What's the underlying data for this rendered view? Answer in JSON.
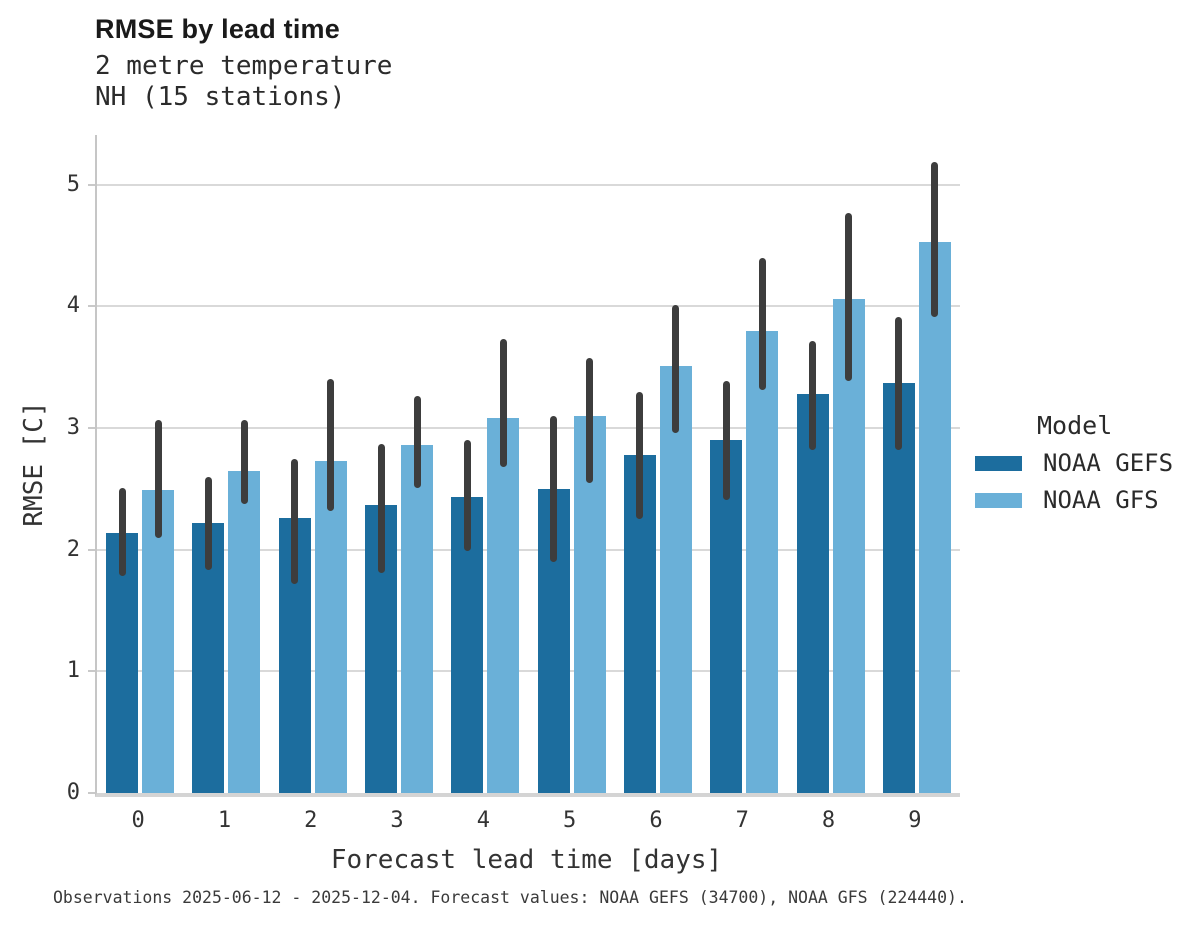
{
  "chart_data": {
    "type": "bar",
    "title": "RMSE by lead time",
    "subtitle_line1": "2 metre temperature",
    "subtitle_line2": "NH (15 stations)",
    "xlabel": "Forecast lead time [days]",
    "ylabel": "RMSE [C]",
    "legend_title": "Model",
    "legend_position": "right",
    "grid": "horizontal",
    "categories": [
      "0",
      "1",
      "2",
      "3",
      "4",
      "5",
      "6",
      "7",
      "8",
      "9"
    ],
    "yticks": [
      0,
      1,
      2,
      3,
      4,
      5
    ],
    "ylim": [
      0,
      5.41
    ],
    "colors": {
      "grid": "#d9d9d9",
      "error_bar": "#3d3d3d",
      "axis_text": "#333333"
    },
    "series": [
      {
        "name": "NOAA GEFS",
        "color": "#1c6d9e",
        "values": [
          2.14,
          2.22,
          2.26,
          2.37,
          2.43,
          2.5,
          2.78,
          2.9,
          3.28,
          3.37
        ],
        "err_lo": [
          1.78,
          1.83,
          1.72,
          1.81,
          1.99,
          1.9,
          2.25,
          2.41,
          2.82,
          2.82
        ],
        "err_hi": [
          2.51,
          2.6,
          2.75,
          2.87,
          2.9,
          3.1,
          3.3,
          3.39,
          3.72,
          3.91
        ]
      },
      {
        "name": "NOAA GFS",
        "color": "#6ab0d8",
        "values": [
          2.49,
          2.65,
          2.73,
          2.86,
          3.08,
          3.1,
          3.51,
          3.8,
          4.06,
          4.53
        ],
        "err_lo": [
          2.1,
          2.38,
          2.32,
          2.51,
          2.68,
          2.55,
          2.96,
          3.31,
          3.39,
          3.91
        ],
        "err_hi": [
          3.07,
          3.07,
          3.4,
          3.26,
          3.73,
          3.58,
          4.01,
          4.4,
          4.77,
          5.19
        ]
      }
    ],
    "footnote": "Observations 2025-06-12 - 2025-12-04. Forecast values: NOAA GEFS (34700), NOAA GFS (224440)."
  }
}
